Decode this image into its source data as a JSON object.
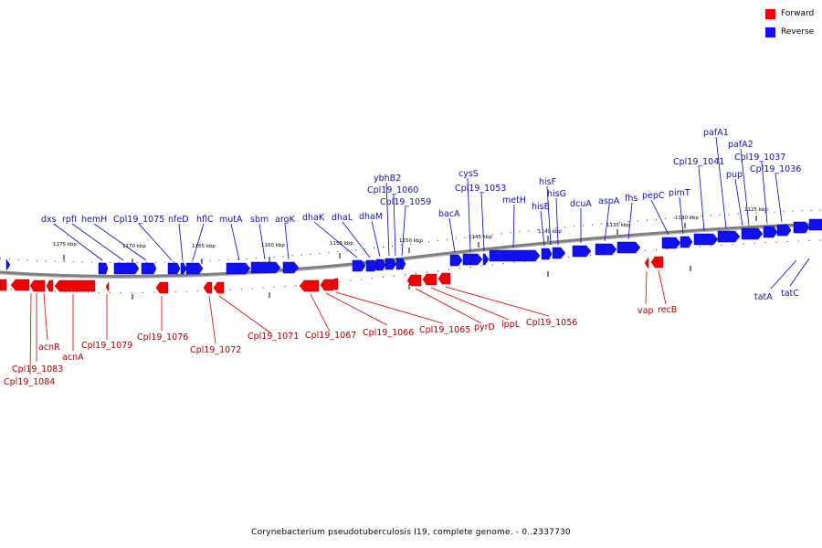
{
  "legend": {
    "forward_label": "Forward",
    "reverse_label": "Reverse",
    "forward_color": "#ee0000",
    "reverse_color": "#1111ee"
  },
  "caption": "Corynebacterium pseudotuberculosis I19, complete genome. - 0..2337730",
  "ruler_labels": [
    "1175 kbp",
    "1170 kbp",
    "1165 kbp",
    "1160 kbp",
    "1155 kbp",
    "1150 kbp",
    "1145 kbp",
    "1140 kbp",
    "1135 kbp",
    "1130 kbp",
    "1125 kbp"
  ],
  "reverse_genes": [
    "dxs",
    "rpfI",
    "hemH",
    "Cpl19_1075",
    "nfeD",
    "hflC",
    "mutA",
    "sbm",
    "argK",
    "dhaK",
    "dhaL",
    "dhaM",
    "ybhB2",
    "Cpl19_1060",
    "Cpl19_1059",
    "bacA",
    "cysS",
    "Cpl19_1053",
    "metH",
    "hisE",
    "hisF",
    "hisG",
    "dcuA",
    "aspA",
    "fhs",
    "pepC",
    "pimT",
    "Cpl19_1041",
    "pafA1",
    "pafA2",
    "pup",
    "Cpl19_1037",
    "Cpl19_1036",
    "tatA",
    "tatC"
  ],
  "forward_genes": [
    "acnR",
    "acnA",
    "Cpl19_1079",
    "Cpl19_1083",
    "Cpl19_1084",
    "Cpl19_1076",
    "Cpl19_1072",
    "Cpl19_1071",
    "Cpl19_1067",
    "Cpl19_1066",
    "Cpl19_1065",
    "pyrD",
    "lppL",
    "Cpl19_1056",
    "vap",
    "recB"
  ]
}
